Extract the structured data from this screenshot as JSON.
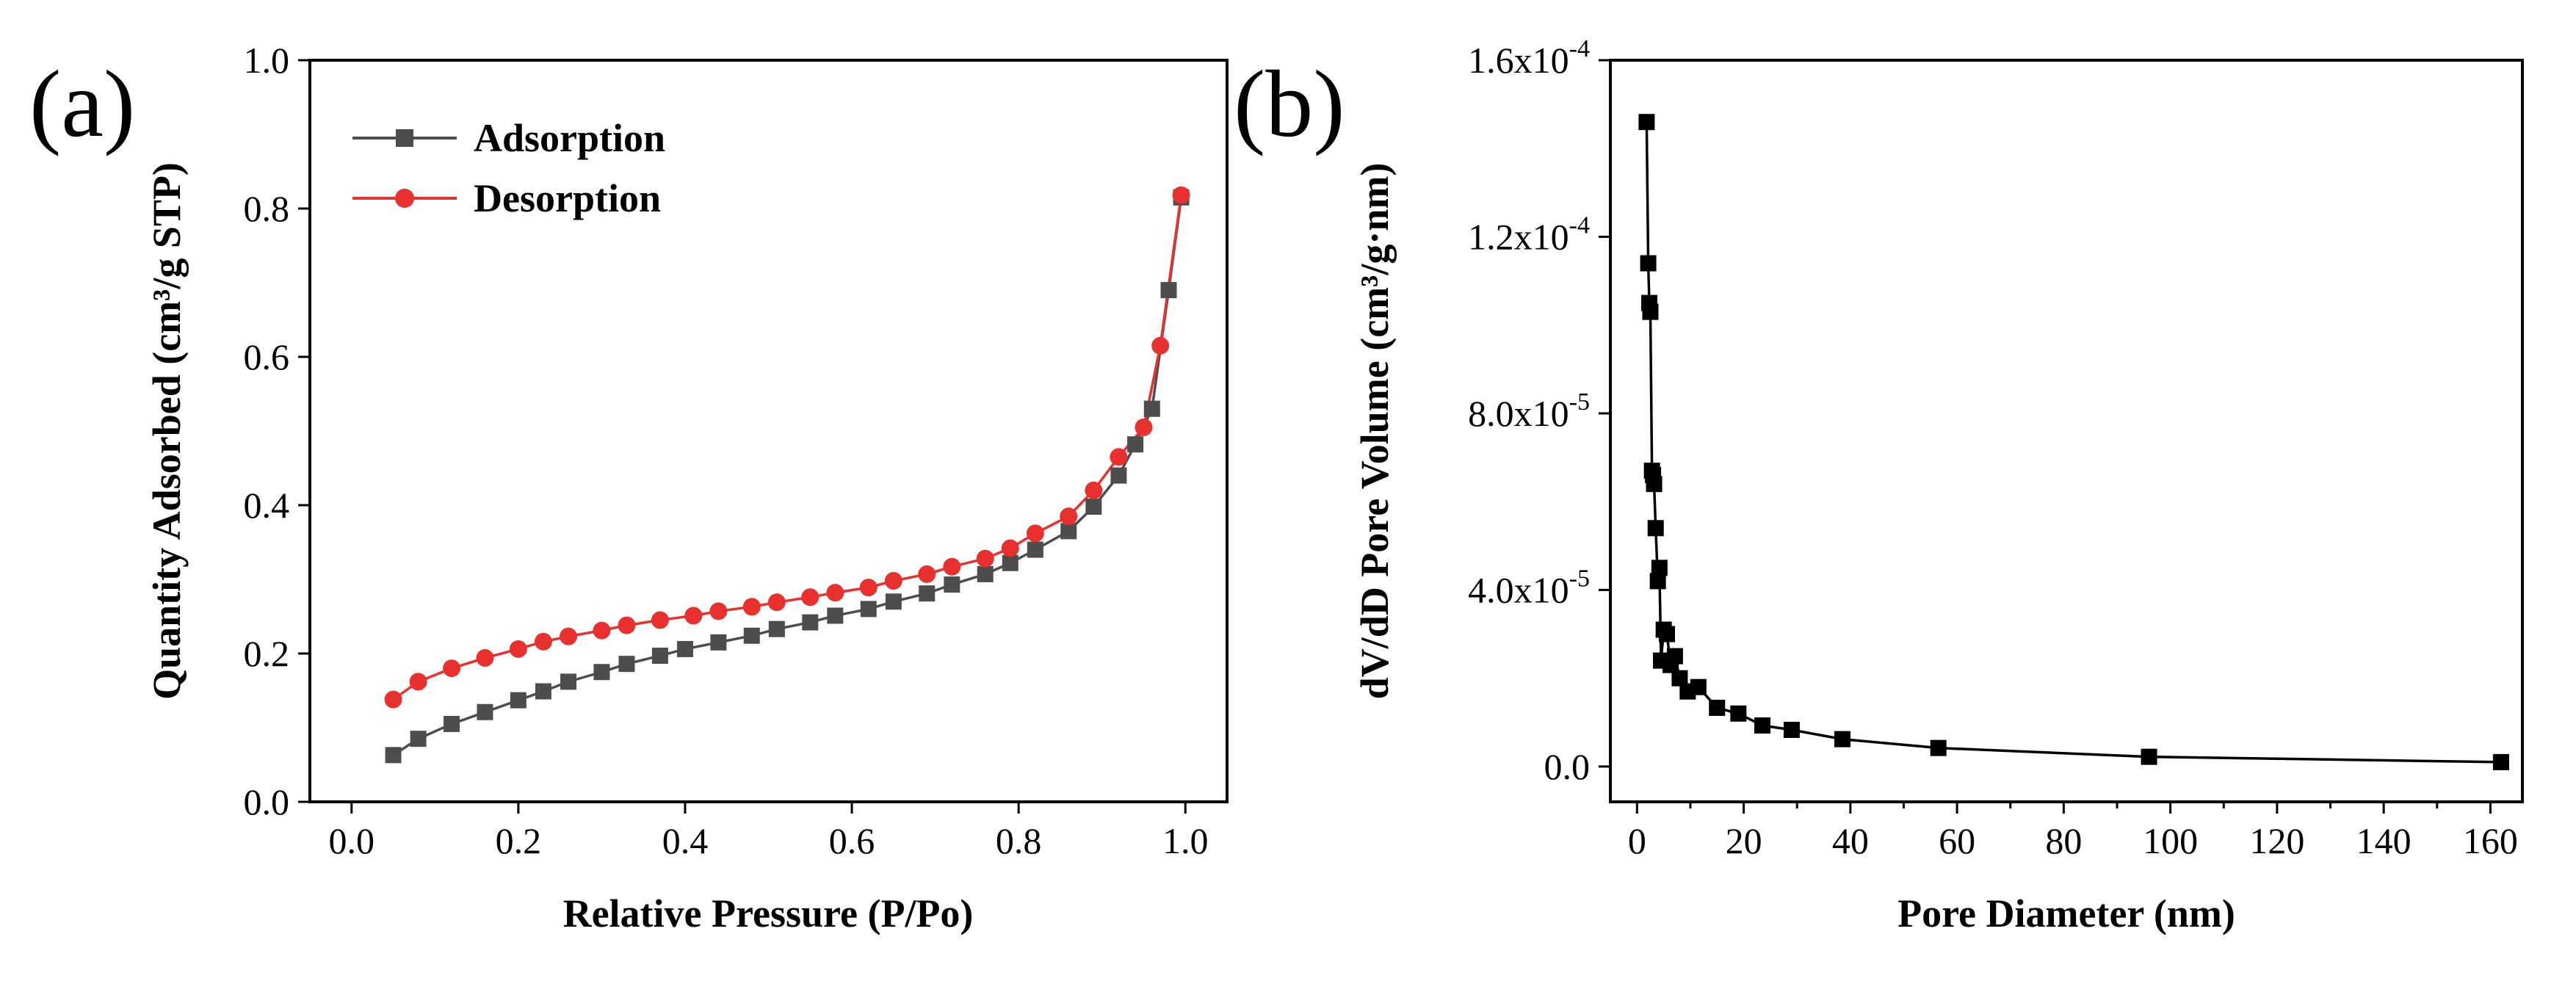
{
  "chart_data": [
    {
      "type": "line",
      "panel_label": "(a)",
      "xlabel": "Relative Pressure (P/Po)",
      "ylabel": "Quantity Adsorbed (cm³/g STP)",
      "xlim": [
        -0.05,
        1.05
      ],
      "ylim": [
        0.0,
        1.0
      ],
      "xticks": [
        0.0,
        0.2,
        0.4,
        0.6,
        0.8,
        1.0
      ],
      "xtick_labels": [
        "0.0",
        "0.2",
        "0.4",
        "0.6",
        "0.8",
        "1.0"
      ],
      "yticks": [
        0.0,
        0.2,
        0.4,
        0.6,
        0.8,
        1.0
      ],
      "ytick_labels": [
        "0.0",
        "0.2",
        "0.4",
        "0.6",
        "0.8",
        "1.0"
      ],
      "legend_position": "top-left",
      "series": [
        {
          "name": "Adsorption",
          "color": "#4d4d4d",
          "marker": "square",
          "x": [
            0.05,
            0.08,
            0.12,
            0.16,
            0.2,
            0.23,
            0.26,
            0.3,
            0.33,
            0.37,
            0.4,
            0.44,
            0.48,
            0.51,
            0.55,
            0.58,
            0.62,
            0.65,
            0.69,
            0.72,
            0.76,
            0.79,
            0.82,
            0.86,
            0.89,
            0.92,
            0.94,
            0.96,
            0.98,
            0.995
          ],
          "y": [
            0.063,
            0.085,
            0.105,
            0.121,
            0.137,
            0.149,
            0.162,
            0.175,
            0.186,
            0.197,
            0.206,
            0.215,
            0.224,
            0.233,
            0.242,
            0.251,
            0.26,
            0.27,
            0.281,
            0.293,
            0.307,
            0.322,
            0.34,
            0.365,
            0.398,
            0.44,
            0.482,
            0.53,
            0.69,
            0.815
          ]
        },
        {
          "name": "Desorption",
          "color": "#e8312f",
          "marker": "circle",
          "x": [
            0.05,
            0.08,
            0.12,
            0.16,
            0.2,
            0.23,
            0.26,
            0.3,
            0.33,
            0.37,
            0.41,
            0.44,
            0.48,
            0.51,
            0.55,
            0.58,
            0.62,
            0.65,
            0.69,
            0.72,
            0.76,
            0.79,
            0.82,
            0.86,
            0.89,
            0.92,
            0.95,
            0.97,
            0.995
          ],
          "y": [
            0.138,
            0.162,
            0.18,
            0.194,
            0.206,
            0.216,
            0.223,
            0.231,
            0.238,
            0.245,
            0.251,
            0.257,
            0.263,
            0.269,
            0.276,
            0.282,
            0.289,
            0.298,
            0.307,
            0.317,
            0.328,
            0.342,
            0.362,
            0.385,
            0.42,
            0.465,
            0.505,
            0.615,
            0.818
          ]
        }
      ]
    },
    {
      "type": "line",
      "panel_label": "(b)",
      "xlabel": "Pore Diameter (nm)",
      "ylabel": "dV/dD Pore Volume (cm³/g·nm)",
      "xlim": [
        -5,
        166
      ],
      "ylim": [
        -8e-06,
        0.00016
      ],
      "xticks": [
        0,
        20,
        40,
        60,
        80,
        100,
        120,
        140,
        160
      ],
      "xtick_labels": [
        "0",
        "20",
        "40",
        "60",
        "80",
        "100",
        "120",
        "140",
        "160"
      ],
      "minor_xticks": [
        10,
        30,
        50,
        70,
        90,
        110,
        130,
        150
      ],
      "yticks": [
        0.0,
        4e-05,
        8e-05,
        0.00012,
        0.00016
      ],
      "ytick_labels": [
        {
          "base": "0.0",
          "exp": ""
        },
        {
          "base": "4.0x10",
          "exp": "-5"
        },
        {
          "base": "8.0x10",
          "exp": "-5"
        },
        {
          "base": "1.2x10",
          "exp": "-4"
        },
        {
          "base": "1.6x10",
          "exp": "-4"
        }
      ],
      "series": [
        {
          "name": "dV/dD",
          "color": "#000000",
          "marker": "square",
          "x": [
            1.8,
            2.1,
            2.3,
            2.5,
            2.8,
            3.0,
            3.2,
            3.5,
            3.9,
            4.2,
            4.5,
            5.0,
            5.6,
            6.3,
            7.1,
            8.0,
            9.5,
            11.5,
            15.0,
            19.0,
            23.5,
            29.0,
            38.5,
            56.5,
            96.0,
            162.0
          ],
          "y": [
            0.000146,
            0.000114,
            0.000105,
            0.000103,
            6.7e-05,
            6.6e-05,
            6.4e-05,
            5.4e-05,
            4.2e-05,
            4.5e-05,
            2.4e-05,
            3.1e-05,
            3e-05,
            2.3e-05,
            2.5e-05,
            2e-05,
            1.7e-05,
            1.8e-05,
            1.33e-05,
            1.2e-05,
            9.3e-06,
            8.3e-06,
            6.2e-06,
            4.2e-06,
            2.2e-06,
            1e-06
          ]
        }
      ]
    }
  ]
}
